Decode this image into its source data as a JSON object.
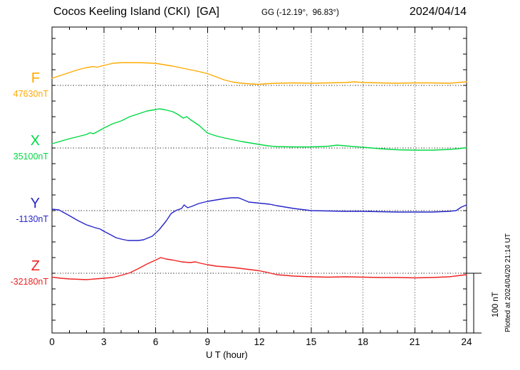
{
  "chart_data": {
    "type": "line",
    "title": "Cocos Keeling Island (CKI)  [GA]",
    "station_code": "CKI",
    "agency": "GA",
    "station_coordinates": "GG (-12.19°,  96.83°)",
    "date": "2024/04/14",
    "xlabel": "U T (hour)",
    "x_range": [
      0,
      24
    ],
    "x_major_ticks": [
      0,
      3,
      6,
      9,
      12,
      15,
      18,
      21,
      24
    ],
    "x_minor_tick_every_hours": 1,
    "grid": "dotted vertical gridlines every 3 h; dotted horizontal baseline for each component",
    "legend_position": "left margin (component letter above its baseline value)",
    "scale_bar_label": "100 nT",
    "scale_bar_span_nT": 100,
    "plotted_note": "Plotted at 2024/04/20 21:14 UT",
    "y_unit": "nT offset from each component baseline",
    "series": [
      {
        "name": "F",
        "baseline_label": "47630nT",
        "color": "#ffaa00",
        "points": [
          [
            0,
            11.8
          ],
          [
            0.5,
            16.5
          ],
          [
            1,
            21.2
          ],
          [
            1.5,
            25.9
          ],
          [
            2,
            29.4
          ],
          [
            2.4,
            31.2
          ],
          [
            2.6,
            30.0
          ],
          [
            3,
            32.9
          ],
          [
            3.5,
            36.5
          ],
          [
            4,
            37.6
          ],
          [
            4.5,
            37.6
          ],
          [
            5,
            37.6
          ],
          [
            5.5,
            37.1
          ],
          [
            6,
            36.5
          ],
          [
            6.5,
            34.1
          ],
          [
            7,
            31.8
          ],
          [
            7.5,
            28.8
          ],
          [
            8,
            25.9
          ],
          [
            8.5,
            22.9
          ],
          [
            9,
            19.4
          ],
          [
            9.5,
            14.1
          ],
          [
            10,
            8.8
          ],
          [
            10.5,
            5.3
          ],
          [
            11,
            3.5
          ],
          [
            11.5,
            2.4
          ],
          [
            12,
            1.8
          ],
          [
            12.5,
            2.9
          ],
          [
            13,
            3.5
          ],
          [
            14,
            4.1
          ],
          [
            15,
            3.5
          ],
          [
            16,
            4.1
          ],
          [
            17,
            4.7
          ],
          [
            17.5,
            5.9
          ],
          [
            18,
            4.7
          ],
          [
            19,
            4.1
          ],
          [
            20,
            3.5
          ],
          [
            21,
            4.1
          ],
          [
            22,
            4.1
          ],
          [
            23,
            3.5
          ],
          [
            23.5,
            4.7
          ],
          [
            24,
            5.9
          ]
        ]
      },
      {
        "name": "X",
        "baseline_label": "35100nT",
        "color": "#00d942",
        "points": [
          [
            0,
            7.1
          ],
          [
            0.5,
            11.2
          ],
          [
            1,
            15.3
          ],
          [
            1.5,
            18.8
          ],
          [
            2,
            22.4
          ],
          [
            2.2,
            25.3
          ],
          [
            2.4,
            23.5
          ],
          [
            3,
            32.9
          ],
          [
            3.5,
            40.0
          ],
          [
            4,
            44.7
          ],
          [
            4.5,
            51.8
          ],
          [
            5,
            56.5
          ],
          [
            5.5,
            61.2
          ],
          [
            6,
            63.5
          ],
          [
            6.2,
            64.7
          ],
          [
            6.5,
            63.5
          ],
          [
            7,
            60.0
          ],
          [
            7.3,
            55.3
          ],
          [
            7.6,
            49.4
          ],
          [
            7.8,
            51.8
          ],
          [
            8,
            47.1
          ],
          [
            8.5,
            37.6
          ],
          [
            9,
            24.7
          ],
          [
            9.5,
            20.0
          ],
          [
            10,
            16.5
          ],
          [
            10.5,
            13.5
          ],
          [
            11,
            10.6
          ],
          [
            11.5,
            8.2
          ],
          [
            12,
            5.9
          ],
          [
            12.5,
            3.5
          ],
          [
            13,
            2.4
          ],
          [
            14,
            1.8
          ],
          [
            15,
            1.8
          ],
          [
            16,
            2.9
          ],
          [
            16.5,
            4.7
          ],
          [
            17,
            3.5
          ],
          [
            18,
            1.2
          ],
          [
            19,
            -1.2
          ],
          [
            20,
            -2.9
          ],
          [
            21,
            -3.5
          ],
          [
            22,
            -3.5
          ],
          [
            23,
            -2.4
          ],
          [
            23.5,
            -1.2
          ],
          [
            24,
            0.6
          ]
        ]
      },
      {
        "name": "Y",
        "baseline_label": "-1130nT",
        "color": "#2626c9",
        "points": [
          [
            0,
            2.4
          ],
          [
            0.4,
            1.2
          ],
          [
            1,
            -8.2
          ],
          [
            1.5,
            -16.5
          ],
          [
            2,
            -23.5
          ],
          [
            2.5,
            -28.2
          ],
          [
            2.8,
            -30.6
          ],
          [
            3,
            -34.1
          ],
          [
            3.4,
            -40.0
          ],
          [
            3.7,
            -44.7
          ],
          [
            4,
            -47.1
          ],
          [
            4.4,
            -49.4
          ],
          [
            5,
            -49.4
          ],
          [
            5.3,
            -48.2
          ],
          [
            5.8,
            -42.4
          ],
          [
            6.2,
            -31.8
          ],
          [
            6.6,
            -17.6
          ],
          [
            6.9,
            -4.7
          ],
          [
            7.2,
            0.6
          ],
          [
            7.5,
            3.5
          ],
          [
            7.65,
            9.4
          ],
          [
            7.85,
            4.7
          ],
          [
            8.1,
            7.1
          ],
          [
            8.5,
            11.8
          ],
          [
            9,
            15.3
          ],
          [
            9.5,
            17.6
          ],
          [
            10,
            20.0
          ],
          [
            10.4,
            21.2
          ],
          [
            10.8,
            21.2
          ],
          [
            11.1,
            17.6
          ],
          [
            11.4,
            14.1
          ],
          [
            11.8,
            12.9
          ],
          [
            12.2,
            11.8
          ],
          [
            12.6,
            10.6
          ],
          [
            13,
            8.2
          ],
          [
            13.5,
            5.9
          ],
          [
            14,
            3.5
          ],
          [
            14.5,
            1.8
          ],
          [
            15,
            0.0
          ],
          [
            16,
            -0.6
          ],
          [
            17,
            -1.2
          ],
          [
            18,
            -1.2
          ],
          [
            19,
            -1.8
          ],
          [
            20,
            -2.4
          ],
          [
            21,
            -2.4
          ],
          [
            22,
            -2.4
          ],
          [
            23,
            -1.2
          ],
          [
            23.4,
            0.0
          ],
          [
            23.7,
            5.9
          ],
          [
            24,
            9.4
          ]
        ]
      },
      {
        "name": "Z",
        "baseline_label": "-32180nT",
        "color": "#ee2222",
        "points": [
          [
            0,
            -6.5
          ],
          [
            0.5,
            -8.2
          ],
          [
            1,
            -9.4
          ],
          [
            1.5,
            -10.0
          ],
          [
            2,
            -10.6
          ],
          [
            2.5,
            -9.4
          ],
          [
            3,
            -8.2
          ],
          [
            3.5,
            -7.1
          ],
          [
            4,
            -3.5
          ],
          [
            4.5,
            0.6
          ],
          [
            5,
            7.6
          ],
          [
            5.5,
            15.3
          ],
          [
            6,
            21.8
          ],
          [
            6.3,
            25.9
          ],
          [
            6.6,
            23.5
          ],
          [
            7,
            21.8
          ],
          [
            7.5,
            18.8
          ],
          [
            8,
            17.6
          ],
          [
            8.3,
            18.8
          ],
          [
            8.6,
            16.5
          ],
          [
            9,
            14.1
          ],
          [
            9.5,
            11.8
          ],
          [
            10,
            10.6
          ],
          [
            10.5,
            9.4
          ],
          [
            11,
            7.6
          ],
          [
            11.5,
            5.9
          ],
          [
            12,
            4.1
          ],
          [
            12.5,
            1.2
          ],
          [
            13,
            -2.4
          ],
          [
            13.5,
            -3.5
          ],
          [
            14,
            -4.7
          ],
          [
            15,
            -5.9
          ],
          [
            16,
            -6.5
          ],
          [
            17,
            -5.9
          ],
          [
            18,
            -6.5
          ],
          [
            19,
            -7.1
          ],
          [
            20,
            -7.1
          ],
          [
            21,
            -7.6
          ],
          [
            22,
            -7.1
          ],
          [
            23,
            -5.9
          ],
          [
            23.5,
            -4.1
          ],
          [
            24,
            -2.4
          ]
        ]
      }
    ]
  }
}
